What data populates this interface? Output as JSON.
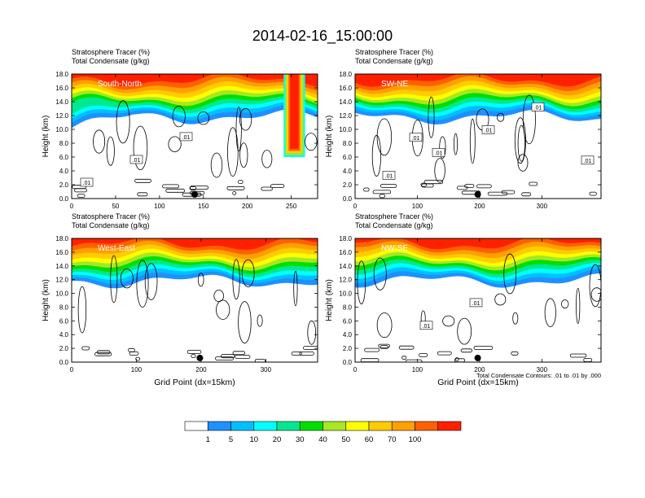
{
  "chart_data": {
    "type": "heatmap",
    "title": "2014-02-16_15:00:00",
    "panel_label_1": "Stratosphere Tracer   (%)",
    "panel_label_2": "Total Condensate   (g/kg)",
    "ylabel": "Height (km)",
    "xlabel": "Grid Point (dx=15km)",
    "ylim": [
      0,
      18
    ],
    "yticks": [
      "0.0",
      "2.0",
      "4.0",
      "6.0",
      "8.0",
      "10.0",
      "12.0",
      "14.0",
      "16.0",
      "18.0"
    ],
    "contour_note": "Total Condensate Contours: .01 to .01 by .000",
    "colorbar": {
      "labels": [
        "1",
        "5",
        "10",
        "20",
        "30",
        "40",
        "50",
        "60",
        "70",
        "100"
      ],
      "colors": [
        "#ffffff",
        "#1e90ff",
        "#00bfff",
        "#00ffff",
        "#00e890",
        "#00e000",
        "#a8e820",
        "#ffff00",
        "#ffcc00",
        "#ffa000",
        "#ff6000",
        "#ff2000"
      ]
    },
    "panels": [
      {
        "name": "South-North",
        "xlim": [
          0,
          280
        ],
        "xticks": [
          0,
          50,
          100,
          150,
          200,
          250
        ],
        "marker_x": 140,
        "contour_labels": [
          ".01",
          ".01",
          ".01"
        ],
        "column": {
          "x0": 245,
          "x1": 262,
          "bottom": 6
        }
      },
      {
        "name": "SW-NE",
        "xlim": [
          0,
          395
        ],
        "xticks": [
          0,
          100,
          200,
          300
        ],
        "marker_x": 197,
        "contour_labels": [
          ".01",
          ".01",
          ".01",
          ".01",
          ".01",
          ".01"
        ]
      },
      {
        "name": "West-East",
        "xlim": [
          0,
          380
        ],
        "xticks": [
          0,
          100,
          200,
          300
        ],
        "marker_x": 198,
        "contour_labels": []
      },
      {
        "name": "NW-SE",
        "xlim": [
          0,
          395
        ],
        "xticks": [
          0,
          100,
          200,
          300
        ],
        "marker_x": 197,
        "contour_labels": [
          ".01",
          ".01"
        ]
      }
    ]
  }
}
